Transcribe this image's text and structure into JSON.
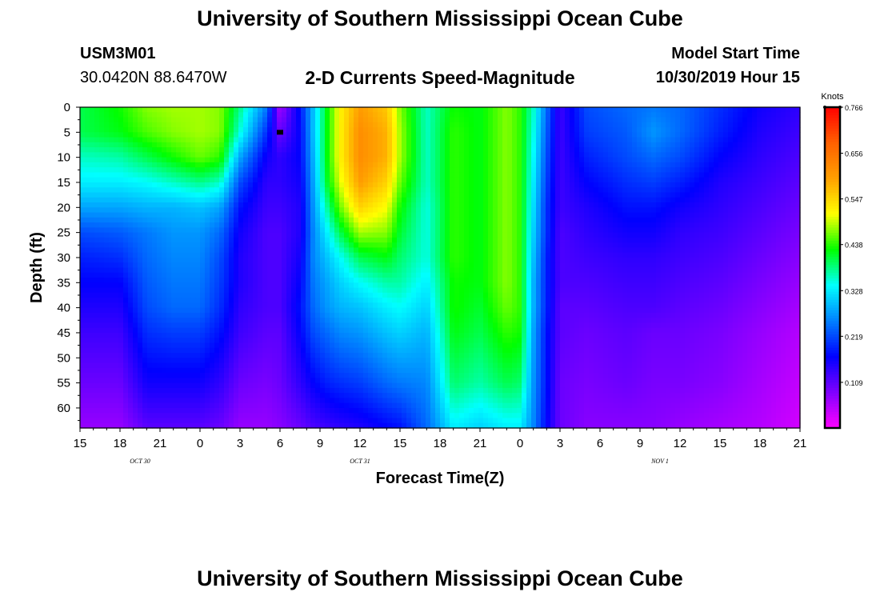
{
  "page": {
    "title_top": "University of Southern Mississippi Ocean Cube",
    "title_bottom": "University of Southern Mississippi Ocean Cube",
    "station_id": "USM3M01",
    "location": "30.0420N 88.6470W",
    "chart_title": "2-D Currents Speed-Magnitude",
    "model_start_label": "Model Start Time",
    "model_start_value": "10/30/2019 Hour 15"
  },
  "colors": {
    "background": "#ffffff",
    "text": "#000000",
    "colormap": [
      "#ff00ff",
      "#8000ff",
      "#0000ff",
      "#0080ff",
      "#00ffff",
      "#00ff00",
      "#ffff00",
      "#ffa000",
      "#ff6000",
      "#ff0000"
    ]
  },
  "chart_data": {
    "type": "heatmap",
    "title": "2-D Currents Speed-Magnitude",
    "xlabel": "Forecast Time(Z)",
    "ylabel": "Depth (ft)",
    "x_ticks": [
      "15",
      "18",
      "21",
      "0",
      "3",
      "6",
      "9",
      "12",
      "15",
      "18",
      "21",
      "0",
      "3",
      "6",
      "9",
      "12",
      "15",
      "18",
      "21"
    ],
    "date_labels": [
      {
        "text": "OCT 30",
        "at_tick": 1.5
      },
      {
        "text": "OCT 31",
        "at_tick": 7
      },
      {
        "text": "NOV 1",
        "at_tick": 14.5
      }
    ],
    "y_ticks": [
      0,
      5,
      10,
      15,
      20,
      25,
      30,
      35,
      40,
      45,
      50,
      55,
      60
    ],
    "ylim": [
      0,
      64
    ],
    "x_hours_range": [
      0,
      54
    ],
    "colorbar": {
      "label": "Knots",
      "ticks": [
        "0.766",
        "0.656",
        "0.547",
        "0.438",
        "0.328",
        "0.219",
        "0.109"
      ],
      "range": [
        0.0,
        0.766
      ]
    },
    "marker": {
      "hour": 15,
      "depth_ft": 5
    },
    "time_hours": [
      0,
      3,
      5,
      7,
      9,
      10.5,
      12,
      14,
      15,
      16.5,
      17.5,
      18.5,
      19.5,
      21,
      23,
      24,
      26,
      28,
      30,
      32,
      33,
      34,
      35,
      36,
      38,
      41,
      43,
      45,
      48,
      51,
      54
    ],
    "depth_ft": [
      0,
      5,
      10,
      15,
      20,
      25,
      30,
      35,
      40,
      45,
      50,
      55,
      60,
      64
    ],
    "speed_knots": [
      [
        0.4,
        0.4,
        0.36,
        0.33,
        0.28,
        0.22,
        0.19,
        0.17,
        0.15,
        0.13,
        0.1,
        0.07
      ],
      [
        0.43,
        0.42,
        0.37,
        0.33,
        0.28,
        0.23,
        0.2,
        0.17,
        0.15,
        0.13,
        0.1,
        0.07
      ],
      [
        0.47,
        0.45,
        0.4,
        0.34,
        0.29,
        0.25,
        0.24,
        0.23,
        0.22,
        0.2,
        0.16,
        0.11
      ],
      [
        0.48,
        0.47,
        0.43,
        0.36,
        0.29,
        0.27,
        0.26,
        0.25,
        0.24,
        0.21,
        0.16,
        0.11
      ],
      [
        0.48,
        0.48,
        0.46,
        0.38,
        0.3,
        0.27,
        0.26,
        0.25,
        0.24,
        0.21,
        0.16,
        0.11
      ],
      [
        0.47,
        0.47,
        0.44,
        0.36,
        0.28,
        0.24,
        0.22,
        0.21,
        0.2,
        0.18,
        0.14,
        0.1
      ],
      [
        0.38,
        0.35,
        0.28,
        0.22,
        0.18,
        0.16,
        0.15,
        0.15,
        0.14,
        0.13,
        0.1,
        0.07
      ],
      [
        0.25,
        0.2,
        0.16,
        0.14,
        0.13,
        0.12,
        0.12,
        0.12,
        0.12,
        0.11,
        0.09,
        0.07
      ],
      [
        0.06,
        0.1,
        0.14,
        0.14,
        0.13,
        0.12,
        0.12,
        0.12,
        0.12,
        0.11,
        0.1,
        0.08
      ],
      [
        0.18,
        0.17,
        0.17,
        0.16,
        0.15,
        0.15,
        0.16,
        0.17,
        0.18,
        0.17,
        0.14,
        0.1
      ],
      [
        0.3,
        0.3,
        0.29,
        0.28,
        0.27,
        0.26,
        0.26,
        0.25,
        0.24,
        0.22,
        0.17,
        0.12
      ],
      [
        0.42,
        0.42,
        0.42,
        0.41,
        0.37,
        0.33,
        0.3,
        0.28,
        0.27,
        0.24,
        0.19,
        0.13
      ],
      [
        0.52,
        0.52,
        0.52,
        0.5,
        0.46,
        0.4,
        0.34,
        0.31,
        0.29,
        0.26,
        0.2,
        0.14
      ],
      [
        0.6,
        0.62,
        0.62,
        0.6,
        0.55,
        0.48,
        0.4,
        0.34,
        0.3,
        0.27,
        0.21,
        0.15
      ],
      [
        0.56,
        0.58,
        0.58,
        0.55,
        0.51,
        0.47,
        0.42,
        0.37,
        0.33,
        0.3,
        0.24,
        0.17
      ],
      [
        0.47,
        0.48,
        0.48,
        0.46,
        0.43,
        0.41,
        0.39,
        0.37,
        0.34,
        0.31,
        0.25,
        0.18
      ],
      [
        0.36,
        0.36,
        0.36,
        0.36,
        0.35,
        0.35,
        0.35,
        0.33,
        0.31,
        0.29,
        0.26,
        0.24
      ],
      [
        0.43,
        0.44,
        0.44,
        0.44,
        0.44,
        0.44,
        0.44,
        0.43,
        0.43,
        0.42,
        0.39,
        0.33
      ],
      [
        0.42,
        0.42,
        0.42,
        0.42,
        0.42,
        0.42,
        0.42,
        0.42,
        0.41,
        0.4,
        0.37,
        0.31
      ],
      [
        0.47,
        0.47,
        0.47,
        0.47,
        0.47,
        0.47,
        0.47,
        0.47,
        0.46,
        0.44,
        0.4,
        0.33
      ],
      [
        0.44,
        0.44,
        0.44,
        0.44,
        0.44,
        0.44,
        0.44,
        0.44,
        0.44,
        0.43,
        0.39,
        0.33
      ],
      [
        0.36,
        0.35,
        0.34,
        0.33,
        0.32,
        0.31,
        0.3,
        0.29,
        0.29,
        0.28,
        0.27,
        0.26
      ],
      [
        0.24,
        0.23,
        0.22,
        0.21,
        0.2,
        0.2,
        0.19,
        0.19,
        0.19,
        0.18,
        0.18,
        0.17
      ],
      [
        0.13,
        0.13,
        0.13,
        0.13,
        0.13,
        0.12,
        0.12,
        0.12,
        0.11,
        0.11,
        0.1,
        0.1
      ],
      [
        0.22,
        0.21,
        0.19,
        0.17,
        0.15,
        0.14,
        0.13,
        0.12,
        0.11,
        0.1,
        0.09,
        0.08
      ],
      [
        0.24,
        0.23,
        0.22,
        0.2,
        0.18,
        0.16,
        0.14,
        0.13,
        0.12,
        0.11,
        0.1,
        0.08
      ],
      [
        0.25,
        0.27,
        0.24,
        0.21,
        0.18,
        0.16,
        0.14,
        0.13,
        0.12,
        0.1,
        0.09,
        0.08
      ],
      [
        0.24,
        0.24,
        0.22,
        0.19,
        0.16,
        0.14,
        0.13,
        0.12,
        0.11,
        0.1,
        0.09,
        0.07
      ],
      [
        0.2,
        0.19,
        0.17,
        0.15,
        0.14,
        0.13,
        0.12,
        0.11,
        0.1,
        0.09,
        0.08,
        0.06
      ],
      [
        0.16,
        0.15,
        0.14,
        0.13,
        0.12,
        0.11,
        0.1,
        0.09,
        0.08,
        0.07,
        0.06,
        0.05
      ],
      [
        0.14,
        0.13,
        0.12,
        0.11,
        0.1,
        0.09,
        0.08,
        0.07,
        0.06,
        0.05,
        0.04,
        0.03
      ]
    ],
    "speed_depths_ft": [
      0,
      5,
      10,
      15,
      20,
      25,
      30,
      35,
      40,
      45,
      55,
      64
    ]
  }
}
